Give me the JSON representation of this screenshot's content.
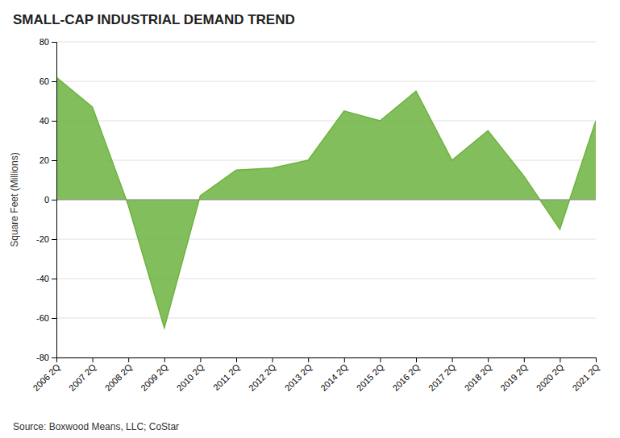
{
  "chart_data": {
    "type": "area",
    "title": "SMALL-CAP INDUSTRIAL DEMAND TREND",
    "ylabel": "Square Feet (Millions)",
    "annotations": [
      "Source: Boxwood Means, LLC; CoStar"
    ],
    "x": [
      2006,
      2007,
      2008,
      2009,
      2010,
      2011,
      2012,
      2013,
      2014,
      2015,
      2016,
      2017,
      2018,
      2019,
      2020,
      2021
    ],
    "values": [
      62,
      47,
      -3,
      -65,
      2,
      15,
      16,
      20,
      45,
      40,
      55,
      20,
      35,
      12,
      -15,
      40
    ],
    "color": "#6db33f",
    "xlim": [
      2006,
      2021
    ],
    "xticks": [
      {
        "value": 2006,
        "label": "2006 2Q"
      },
      {
        "value": 2007,
        "label": "2007 2Q"
      },
      {
        "value": 2008,
        "label": "2008 2Q"
      },
      {
        "value": 2009,
        "label": "2009 2Q"
      },
      {
        "value": 2010,
        "label": "2010 2Q"
      },
      {
        "value": 2011,
        "label": "2011 2Q"
      },
      {
        "value": 2012,
        "label": "2012 2Q"
      },
      {
        "value": 2013,
        "label": "2013 2Q"
      },
      {
        "value": 2014,
        "label": "2014 2Q"
      },
      {
        "value": 2015,
        "label": "2015 2Q"
      },
      {
        "value": 2016,
        "label": "2016 2Q"
      },
      {
        "value": 2017,
        "label": "2017 2Q"
      },
      {
        "value": 2018,
        "label": "2018 2Q"
      },
      {
        "value": 2019,
        "label": "2019 2Q"
      },
      {
        "value": 2020,
        "label": "2020 2Q"
      },
      {
        "value": 2021,
        "label": "2021 2Q"
      }
    ],
    "ylim": [
      -80,
      80
    ],
    "yticks": [
      -80,
      -60,
      -40,
      -20,
      0,
      20,
      40,
      60,
      80
    ],
    "grid": true
  }
}
